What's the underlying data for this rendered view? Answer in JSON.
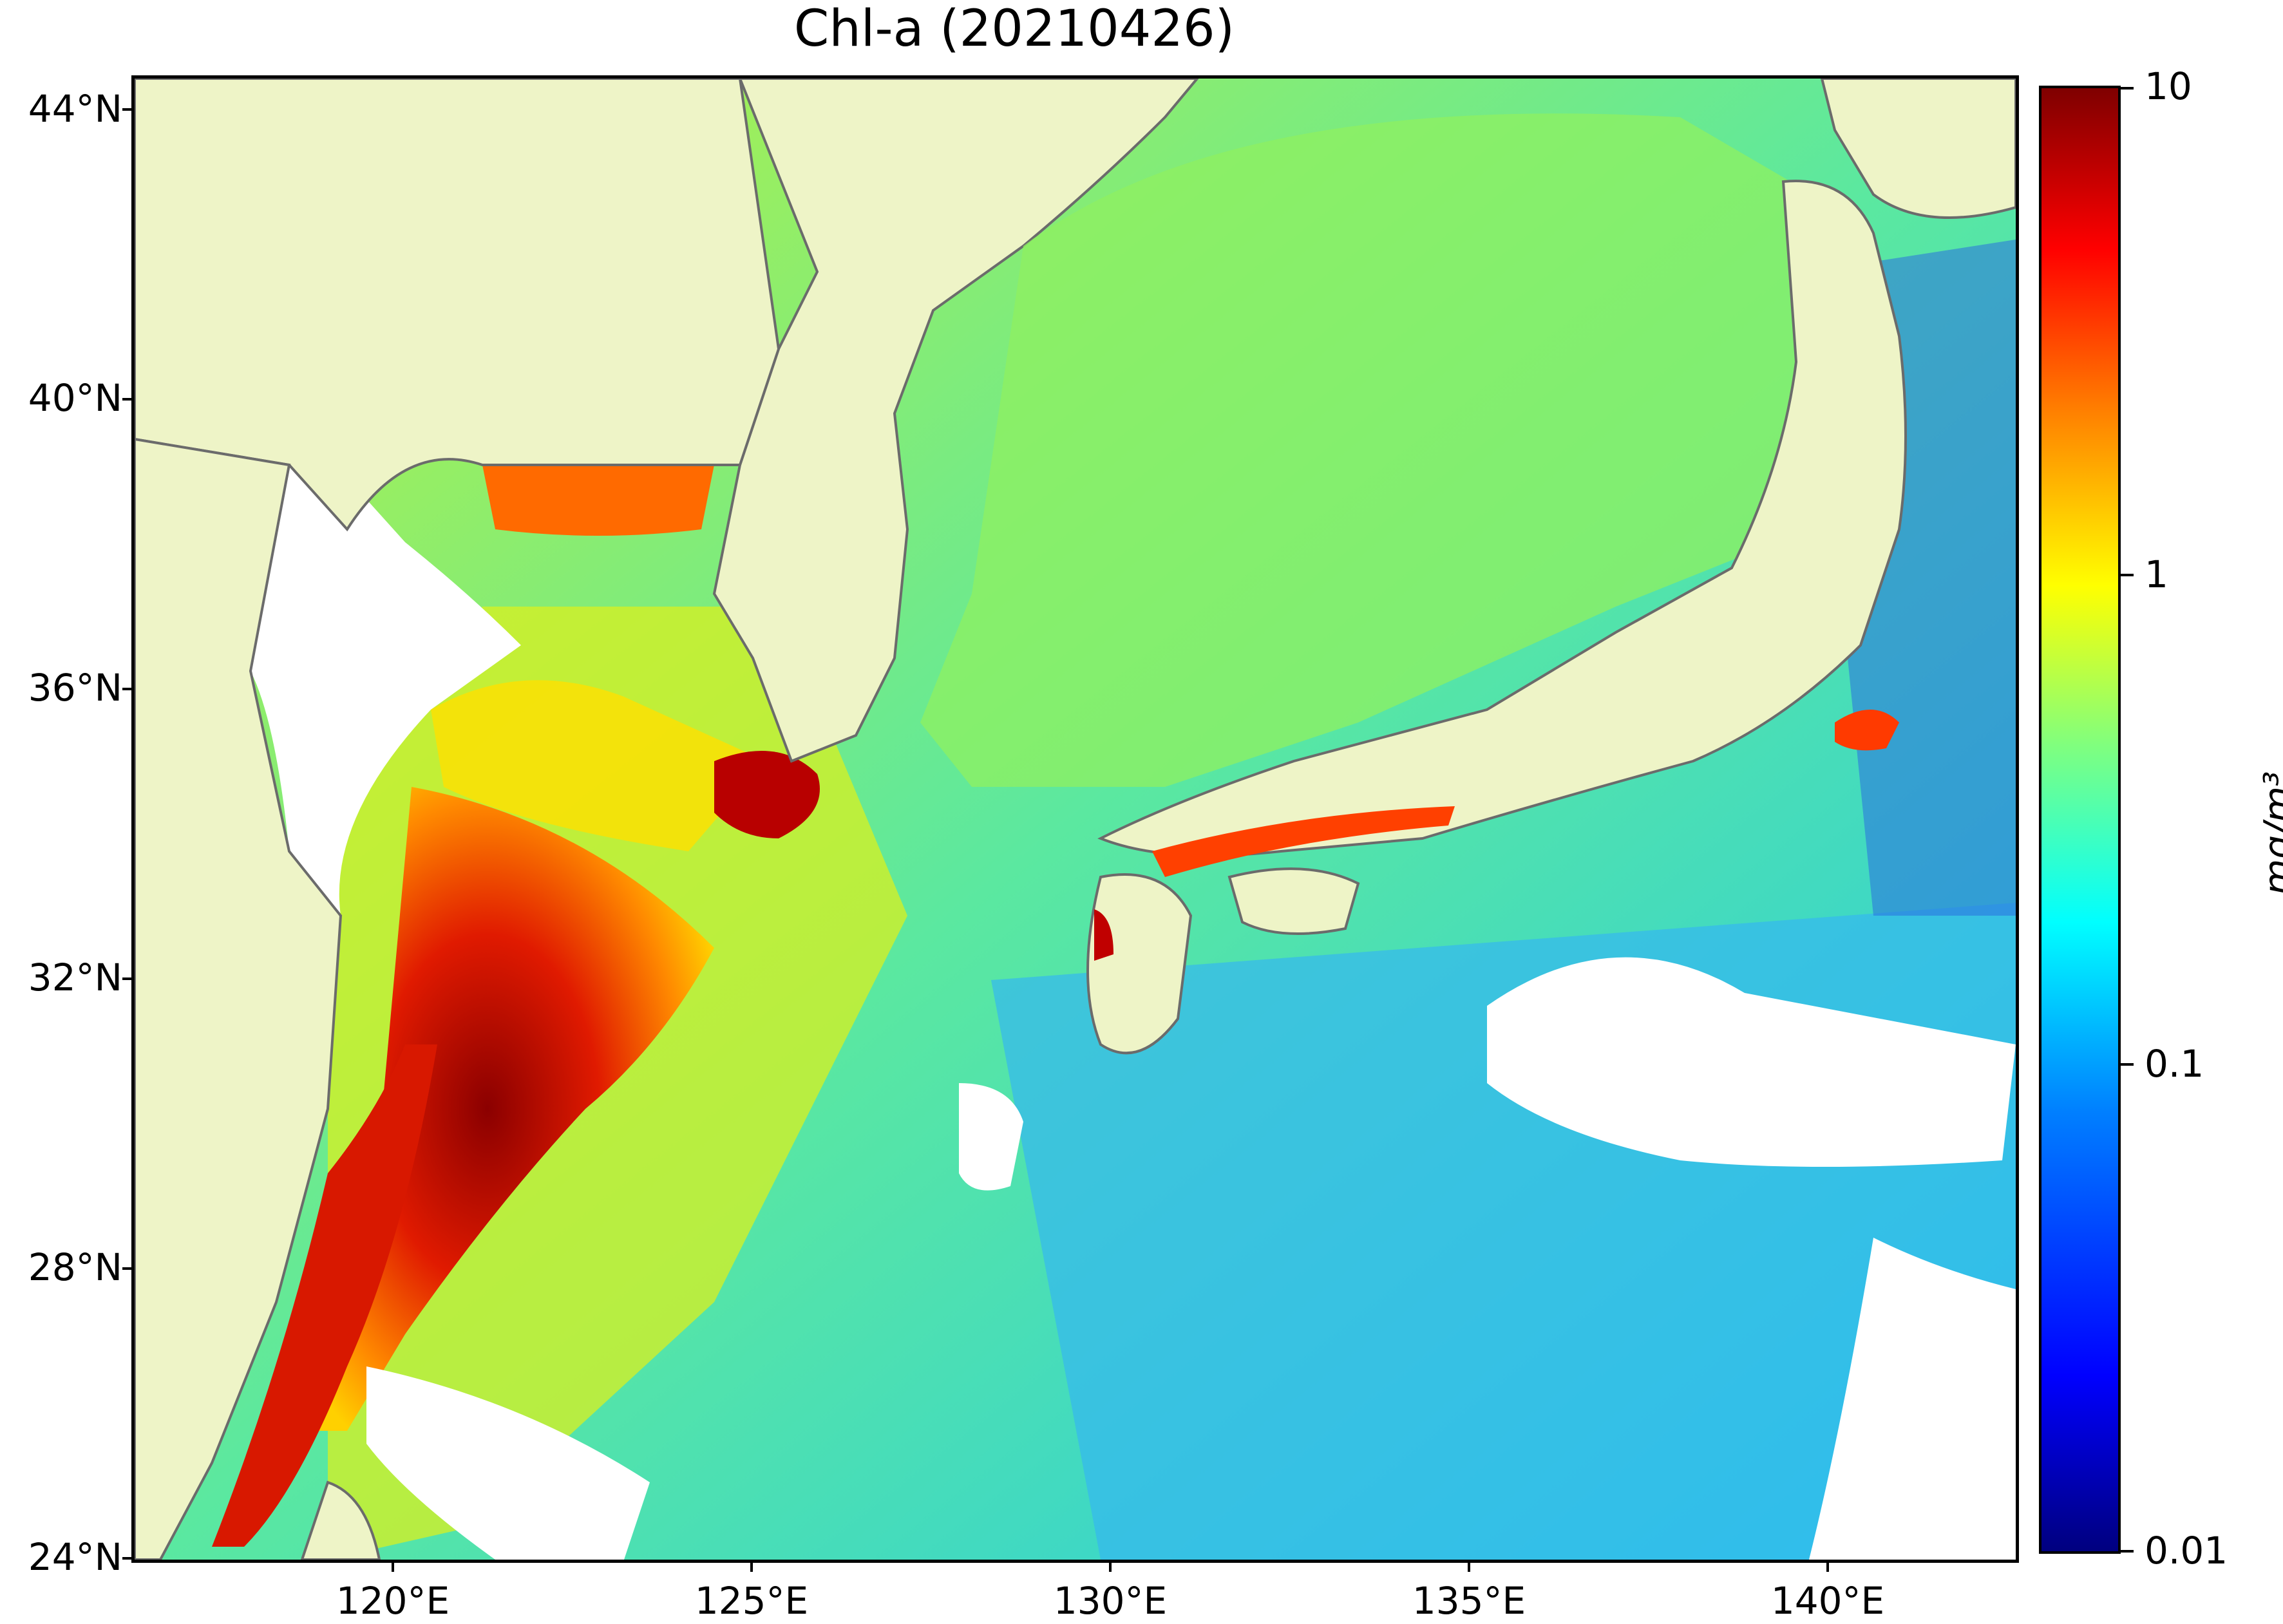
{
  "title": "Chl-a (20210426)",
  "lat_labels": [
    "44°N",
    "40°N",
    "36°N",
    "32°N",
    "28°N",
    "24°N"
  ],
  "lon_labels": [
    "120°E",
    "125°E",
    "130°E",
    "135°E",
    "140°E"
  ],
  "colorbar": {
    "labels": [
      "10",
      "1",
      "0.1",
      "0.01"
    ],
    "unit": "mg/m³",
    "scale": "log",
    "range": [
      0.01,
      10
    ],
    "colormap": "jet"
  },
  "colors": {
    "land": "#eef4c7",
    "no_data": "#ffffff",
    "coastline": "#6b6b6b"
  }
}
